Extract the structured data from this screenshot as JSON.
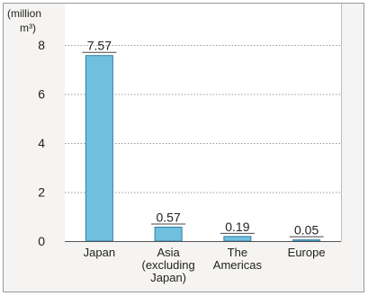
{
  "chart_data": {
    "type": "bar",
    "categories": [
      "Japan",
      "Asia (excluding Japan)",
      "The Americas",
      "Europe"
    ],
    "category_label_lines": [
      [
        "Japan"
      ],
      [
        "Asia",
        "(excluding",
        "Japan)"
      ],
      [
        "The",
        "Americas"
      ],
      [
        "Europe"
      ]
    ],
    "values": [
      7.57,
      0.57,
      0.19,
      0.05
    ],
    "data_labels": [
      "7.57",
      "0.57",
      "0.19",
      "0.05"
    ],
    "unit_label_lines": [
      "(million",
      "m³)"
    ],
    "ylim": [
      0,
      8
    ],
    "yticks": [
      0,
      2,
      4,
      6,
      8
    ],
    "grid": true,
    "colors": {
      "bar_fill": "#6fbfdf",
      "bar_stroke": "#2e7fa6",
      "panel_background": "#f5f4f2",
      "frame": "#999999",
      "grid": "#9a9a9a",
      "axis": "#555555"
    }
  }
}
